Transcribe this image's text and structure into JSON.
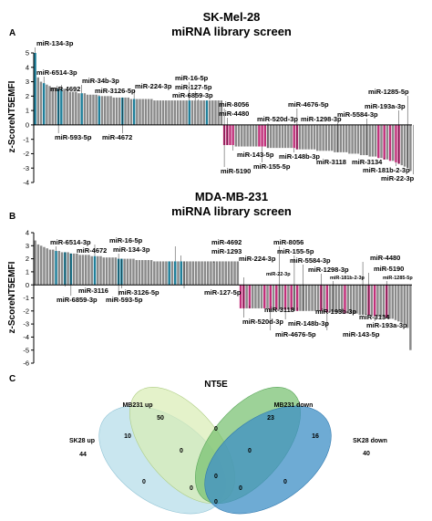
{
  "colors": {
    "up": "#8a8a8a",
    "down": "#8a8a8a",
    "highlight_up": "#1f7f9a",
    "highlight_down": "#c0307a",
    "axis": "#000000"
  },
  "chart_data": [
    {
      "type": "bar",
      "panel": "A",
      "title": "SK-Mel-28",
      "subtitle": "miRNA library screen",
      "ylabel": "z-ScoreNT5EMFI",
      "ylim": [
        -4,
        5
      ],
      "yticks": [
        "5",
        "4",
        "3",
        "2",
        "1",
        "0",
        "-1",
        "-2",
        "-3",
        "-4"
      ],
      "values": [
        5.0,
        3.3,
        3.0,
        2.9,
        2.8,
        2.7,
        2.6,
        2.6,
        2.5,
        2.5,
        2.4,
        2.4,
        2.3,
        2.3,
        2.3,
        2.2,
        2.2,
        2.2,
        2.1,
        2.1,
        2.1,
        2.1,
        2.0,
        2.0,
        2.0,
        2.0,
        2.0,
        1.9,
        1.9,
        1.9,
        1.9,
        1.9,
        1.9,
        1.8,
        1.8,
        1.8,
        1.8,
        1.8,
        1.8,
        1.8,
        1.8,
        1.7,
        1.7,
        1.7,
        1.7,
        1.7,
        1.7,
        1.7,
        1.7,
        1.7,
        1.7,
        1.7,
        1.7,
        1.7,
        1.7,
        1.7,
        1.7,
        1.7,
        1.7,
        1.7,
        1.7,
        1.7,
        1.7,
        1.7,
        1.7,
        -1.4,
        -1.4,
        -1.4,
        -1.4,
        -1.5,
        -1.5,
        -1.5,
        -1.5,
        -1.5,
        -1.5,
        -1.5,
        -1.5,
        -1.5,
        -1.5,
        -1.5,
        -1.6,
        -1.6,
        -1.6,
        -1.6,
        -1.6,
        -1.6,
        -1.6,
        -1.6,
        -1.6,
        -1.6,
        -1.7,
        -1.7,
        -1.7,
        -1.7,
        -1.7,
        -1.7,
        -1.7,
        -1.8,
        -1.8,
        -1.8,
        -1.8,
        -1.8,
        -1.8,
        -1.9,
        -1.9,
        -1.9,
        -1.9,
        -1.9,
        -2.0,
        -2.0,
        -2.0,
        -2.0,
        -2.1,
        -2.1,
        -2.1,
        -2.2,
        -2.2,
        -2.2,
        -2.3,
        -2.3,
        -2.4,
        -2.4,
        -2.5,
        -2.5,
        -2.6,
        -2.7,
        -2.8,
        -2.9,
        -3.0,
        -3.2
      ],
      "highlighted": [
        0,
        3,
        8,
        9,
        16,
        22,
        30,
        34,
        53,
        59,
        65,
        66,
        67,
        68,
        77,
        78,
        79,
        89,
        90,
        118,
        120,
        122,
        124,
        125
      ],
      "annotations": [
        {
          "text": "miR-134-3p",
          "bar": 0
        },
        {
          "text": "miR-6514-3p",
          "bar": 3
        },
        {
          "text": "miR-34b-3p",
          "bar": 16
        },
        {
          "text": "miR-4692",
          "bar": 9
        },
        {
          "text": "miR-3126-5p",
          "bar": 22
        },
        {
          "text": "miR-224-3p",
          "bar": 34
        },
        {
          "text": "miR-16-5p",
          "bar": 53
        },
        {
          "text": "miR-127-5p",
          "bar": 55
        },
        {
          "text": "miR-6859-3p",
          "bar": 56
        },
        {
          "text": "miR-593-5p",
          "bar": 8
        },
        {
          "text": "miR-4672",
          "bar": 30
        },
        {
          "text": "miR-8056",
          "bar": 65
        },
        {
          "text": "miR-4480",
          "bar": 66
        },
        {
          "text": "miR-520d-3p",
          "bar": 80
        },
        {
          "text": "miR-4676-5p",
          "bar": 90
        },
        {
          "text": "miR-1298-3p",
          "bar": 104
        },
        {
          "text": "miR-5584-3p",
          "bar": 114
        },
        {
          "text": "miR-193a-3p",
          "bar": 125
        },
        {
          "text": "miR-1285-5p",
          "bar": 128
        },
        {
          "text": "miR-143-5p",
          "bar": 68
        },
        {
          "text": "miR-148b-3p",
          "bar": 89
        },
        {
          "text": "miR-5190",
          "bar": 65
        },
        {
          "text": "miR-155-5p",
          "bar": 78
        },
        {
          "text": "miR-3118",
          "bar": 118
        },
        {
          "text": "miR-3134",
          "bar": 120
        },
        {
          "text": "miR-181b-2-3p",
          "bar": 124
        },
        {
          "text": "miR-22-3p",
          "bar": 130
        }
      ]
    },
    {
      "type": "bar",
      "panel": "B",
      "title": "MDA-MB-231",
      "subtitle": "miRNA library screen",
      "ylabel": "z-ScoreNT5EMFI",
      "ylim": [
        -6,
        4
      ],
      "yticks": [
        "4",
        "3",
        "2",
        "1",
        "0",
        "-1",
        "-2",
        "-3",
        "-4",
        "-5",
        "-6"
      ],
      "values": [
        3.4,
        3.1,
        3.0,
        2.9,
        2.8,
        2.7,
        2.7,
        2.6,
        2.6,
        2.5,
        2.5,
        2.5,
        2.4,
        2.4,
        2.4,
        2.3,
        2.3,
        2.3,
        2.3,
        2.2,
        2.2,
        2.2,
        2.2,
        2.1,
        2.1,
        2.1,
        2.1,
        2.1,
        2.0,
        2.0,
        2.0,
        2.0,
        2.0,
        2.0,
        1.9,
        1.9,
        1.9,
        1.9,
        1.9,
        1.9,
        1.8,
        1.8,
        1.8,
        1.8,
        1.8,
        1.8,
        1.8,
        1.8,
        1.8,
        1.8,
        1.8,
        1.8,
        1.8,
        1.8,
        1.8,
        1.8,
        1.8,
        1.8,
        1.8,
        1.8,
        1.8,
        1.8,
        1.8,
        1.8,
        1.8,
        1.8,
        1.8,
        1.8,
        1.8,
        -1.8,
        -1.8,
        -1.8,
        -1.8,
        -1.8,
        -1.8,
        -1.8,
        -1.8,
        -1.8,
        -1.8,
        -1.9,
        -1.9,
        -1.9,
        -1.9,
        -1.9,
        -1.9,
        -1.9,
        -1.9,
        -2.0,
        -2.0,
        -2.0,
        -2.0,
        -2.0,
        -2.0,
        -2.0,
        -2.0,
        -2.0,
        -2.0,
        -2.1,
        -2.1,
        -2.1,
        -2.1,
        -2.1,
        -2.1,
        -2.1,
        -2.2,
        -2.2,
        -2.2,
        -2.2,
        -2.2,
        -2.3,
        -2.3,
        -2.3,
        -2.3,
        -2.4,
        -2.4,
        -2.4,
        -2.5,
        -2.5,
        -2.5,
        -2.6,
        -2.6,
        -2.7,
        -2.8,
        -2.9,
        -3.0,
        -3.3,
        -5.0
      ],
      "highlighted": [
        7,
        10,
        12,
        20,
        28,
        29,
        45,
        47,
        49,
        69,
        70,
        72,
        77,
        79,
        81,
        84,
        86,
        88,
        96,
        98,
        104,
        112,
        114,
        118
      ],
      "annotations": [
        {
          "text": "miR-6514-3p",
          "bar": 7
        },
        {
          "text": "miR-4672",
          "bar": 12
        },
        {
          "text": "miR-16-5p",
          "bar": 20
        },
        {
          "text": "miR-134-3p",
          "bar": 28
        },
        {
          "text": "miR-3116",
          "bar": 10
        },
        {
          "text": "miR-6859-3p",
          "bar": 12
        },
        {
          "text": "miR-3126-5p",
          "bar": 29
        },
        {
          "text": "miR-593-5p",
          "bar": 28
        },
        {
          "text": "miR-4692",
          "bar": 47
        },
        {
          "text": "miR-1293",
          "bar": 49
        },
        {
          "text": "miR-224-3p",
          "bar": 60
        },
        {
          "text": "miR-127-5p",
          "bar": 50
        },
        {
          "text": "miR-8056",
          "bar": 82
        },
        {
          "text": "miR-155-5p",
          "bar": 87
        },
        {
          "text": "miR-22-3p",
          "bar": 70
        },
        {
          "text": "miR-5584-3p",
          "bar": 90
        },
        {
          "text": "miR-1298-3p",
          "bar": 96
        },
        {
          "text": "miR-4480",
          "bar": 110
        },
        {
          "text": "miR-181b-2-3p",
          "bar": 100
        },
        {
          "text": "miR-5190",
          "bar": 112
        },
        {
          "text": "miR-1285-5p",
          "bar": 118
        },
        {
          "text": "miR-3118",
          "bar": 72
        },
        {
          "text": "miR-520d-3p",
          "bar": 70
        },
        {
          "text": "miR-193b-3p",
          "bar": 88
        },
        {
          "text": "miR-148b-3p",
          "bar": 84
        },
        {
          "text": "miR-4676-5p",
          "bar": 79
        },
        {
          "text": "miR-3134",
          "bar": 104
        },
        {
          "text": "miR-193a-3p",
          "bar": 114
        },
        {
          "text": "miR-143-5p",
          "bar": 98
        }
      ]
    }
  ],
  "venn": {
    "panel": "C",
    "title": "NT5E",
    "sets": [
      "MB231 up",
      "MB231 down",
      "SK28 up",
      "SK28 down"
    ],
    "counts": {
      "mb231_up_only": "50",
      "mb231_down_only": "23",
      "sk28_up_only": "44",
      "sk28_down_only": "40",
      "mb231_up_sk28_up": "10",
      "mb231_down_sk28_down": "16",
      "mb231_up_mb231_down": "0",
      "mb231_up_sk28_down": "0",
      "mb231_down_sk28_up": "0",
      "sk28_up_sk28_down": "0",
      "triple_a": "0",
      "triple_b": "0",
      "triple_c": "0",
      "triple_d": "0",
      "all_four": "0"
    }
  }
}
